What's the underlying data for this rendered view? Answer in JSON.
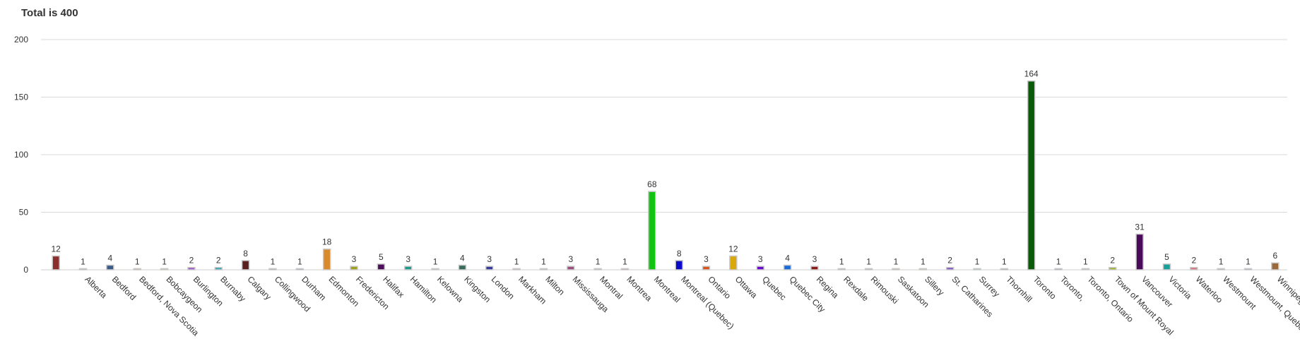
{
  "chart_data": {
    "type": "bar",
    "title": "Total is 400",
    "xlabel": "",
    "ylabel": "",
    "ylim": [
      0,
      200
    ],
    "yticks": [
      "0",
      "50",
      "100",
      "150",
      "200"
    ],
    "grid": true,
    "categories": [
      "",
      "Alberta",
      "Bedford",
      "Bedford, Nova Scotia",
      "Bobcaygeon",
      "Burlington",
      "Burnaby",
      "Calgary",
      "Collingwood",
      "Durham",
      "Edmonton",
      "Fredericton",
      "Halifax",
      "Hamilton",
      "Kelowna",
      "Kingston",
      "London",
      "Markham",
      "Milton",
      "Mississauga",
      "Montral",
      "Montrea",
      "Montreal",
      "Montreal (Quebec)",
      "Ontario",
      "Ottawa",
      "Quebec",
      "Quebec City",
      "Regina",
      "Rexdale",
      "Rimouski",
      "Saskatoon",
      "Sillery",
      "St. Catharines",
      "Surrey",
      "Thornhill",
      "Toronto",
      "Toronto,",
      "Toronto, Ontario",
      "Town of Mount Royal",
      "Vancouver",
      "Victoria",
      "Waterloo",
      "Westmount",
      "Westmount, Quebec",
      "Winnipeg"
    ],
    "values": [
      12,
      1,
      4,
      1,
      1,
      2,
      2,
      8,
      1,
      1,
      18,
      3,
      5,
      3,
      1,
      4,
      3,
      1,
      1,
      3,
      1,
      1,
      68,
      8,
      3,
      12,
      3,
      4,
      3,
      1,
      1,
      1,
      1,
      2,
      1,
      1,
      164,
      1,
      1,
      2,
      31,
      5,
      2,
      1,
      1,
      6
    ],
    "data_labels": [
      "12",
      "1",
      "4",
      "1",
      "1",
      "2",
      "2",
      "8",
      "1",
      "1",
      "18",
      "3",
      "5",
      "3",
      "1",
      "4",
      "3",
      "1",
      "1",
      "3",
      "1",
      "1",
      "68",
      "8",
      "3",
      "12",
      "3",
      "4",
      "3",
      "1",
      "1",
      "1",
      "1",
      "2",
      "1",
      "1",
      "164",
      "1",
      "1",
      "2",
      "31",
      "5",
      "2",
      "1",
      "1",
      "6"
    ],
    "colors": [
      "#8b2e2e",
      "#5a8a3a",
      "#3a5a8a",
      "#d2691e",
      "#c8b040",
      "#9b4fc8",
      "#2aa6b0",
      "#5a1f1f",
      "#2e6b2e",
      "#2e2e8b",
      "#d98a2b",
      "#a0a020",
      "#4b0f5a",
      "#1f9a8a",
      "#d98a9a",
      "#3a6b5a",
      "#3a3a9a",
      "#c86a3a",
      "#b0a060",
      "#9a4f7a",
      "#6a8ac8",
      "#c83a3a",
      "#11c411",
      "#0a0ac8",
      "#d9531e",
      "#d9a80a",
      "#6a0ac8",
      "#1a6ad9",
      "#8b1a1a",
      "#6a9a6a",
      "#4a7a9a",
      "#d9833a",
      "#d9c84a",
      "#7a4ac8",
      "#4ab0d9",
      "#7a2a3a",
      "#0a5a0a",
      "#2a2a8a",
      "#d99a6a",
      "#9ab02a",
      "#4a0a5a",
      "#1aa09a",
      "#d96a7a",
      "#2a8a6a",
      "#4a4ab0",
      "#9a6a3a"
    ]
  }
}
